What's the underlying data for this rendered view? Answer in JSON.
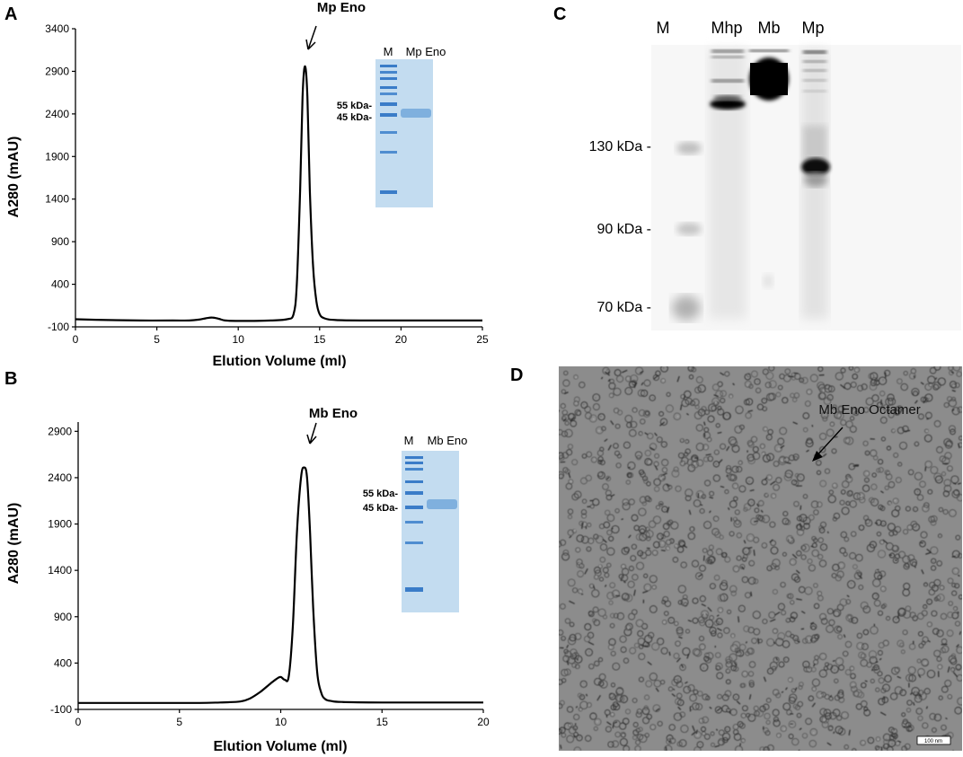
{
  "panel_letters": [
    "A",
    "B",
    "C",
    "D"
  ],
  "chart_data": [
    {
      "panel": "A",
      "type": "line",
      "xlabel": "Elution Volume (ml)",
      "ylabel": "A280 (mAU)",
      "xlim": [
        0,
        25
      ],
      "ylim": [
        -100,
        3400
      ],
      "xticks": [
        0,
        5,
        10,
        15,
        20,
        25
      ],
      "yticks": [
        -100,
        400,
        900,
        1400,
        1900,
        2400,
        2900,
        3400
      ],
      "annotation": "Mp Eno",
      "series": [
        {
          "x": [
            0,
            2,
            4,
            6,
            7,
            7.6,
            8.0,
            8.4,
            8.8,
            9.2,
            10,
            11,
            12,
            13,
            13.4,
            13.6,
            13.8,
            13.95,
            14.1,
            14.25,
            14.4,
            14.6,
            14.8,
            15.0,
            15.3,
            16,
            18,
            20,
            22,
            25
          ],
          "y": [
            -10,
            -20,
            -25,
            -25,
            -25,
            -15,
            0,
            10,
            -5,
            -25,
            -30,
            -30,
            -25,
            -10,
            50,
            400,
            1500,
            2600,
            2960,
            2600,
            1500,
            600,
            200,
            50,
            0,
            -20,
            -25,
            -25,
            -25,
            -25
          ]
        }
      ],
      "inset": {
        "lane_labels": [
          "M",
          "Mp Eno"
        ],
        "markers": [
          "55 kDa-",
          "45 kDa-"
        ]
      }
    },
    {
      "panel": "B",
      "type": "line",
      "xlabel": "Elution Volume (ml)",
      "ylabel": "A280 (mAU)",
      "xlim": [
        0,
        20
      ],
      "ylim": [
        -100,
        3000
      ],
      "xticks": [
        0,
        5,
        10,
        15,
        20
      ],
      "yticks": [
        -100,
        400,
        900,
        1400,
        1900,
        2400,
        2900
      ],
      "annotation": "Mb Eno",
      "series": [
        {
          "x": [
            0,
            2,
            4,
            6,
            7,
            8,
            8.5,
            9,
            9.5,
            9.8,
            10.0,
            10.2,
            10.4,
            10.6,
            10.8,
            11.0,
            11.15,
            11.3,
            11.45,
            11.6,
            11.8,
            12.0,
            12.2,
            12.5,
            13,
            15,
            17,
            20
          ],
          "y": [
            -30,
            -30,
            -30,
            -30,
            -25,
            -15,
            20,
            90,
            180,
            230,
            250,
            220,
            260,
            800,
            1800,
            2400,
            2510,
            2400,
            1800,
            1000,
            300,
            80,
            10,
            -10,
            -20,
            -25,
            -25,
            -25
          ]
        }
      ],
      "inset": {
        "lane_labels": [
          "M",
          "Mb Eno"
        ],
        "markers": [
          "55 kDa-",
          "45 kDa-"
        ]
      }
    }
  ],
  "gel_c": {
    "lane_labels": [
      "M",
      "Mhp",
      "Mb",
      "Mp"
    ],
    "markers": [
      "130 kDa -",
      "90 kDa -",
      "70 kDa -"
    ]
  },
  "em_d": {
    "annotation": "Mb Eno Octamer",
    "scale_bar": "100 nm"
  }
}
